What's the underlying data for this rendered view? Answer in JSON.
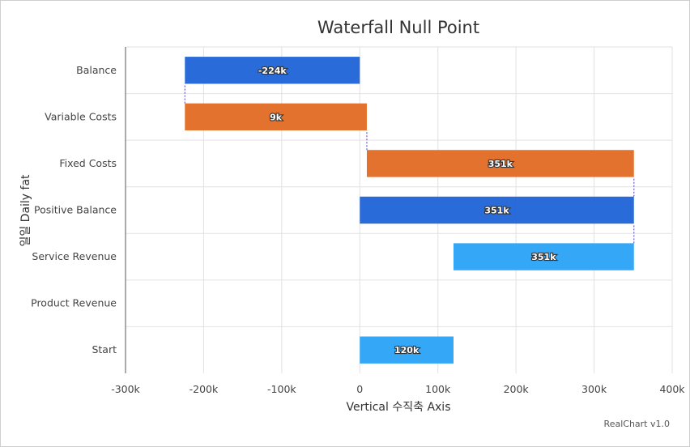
{
  "chart_data": {
    "type": "bar",
    "orientation": "horizontal",
    "subtype": "waterfall",
    "title": "Waterfall Null Point",
    "xlabel": "Vertical 수직축 Axis",
    "ylabel": "일일 Daily fat",
    "xlim": [
      -300000,
      400000
    ],
    "x_ticks": [
      -300000,
      -200000,
      -100000,
      0,
      100000,
      200000,
      300000,
      400000
    ],
    "x_tick_labels": [
      "-300k",
      "-200k",
      "-100k",
      "0",
      "100k",
      "200k",
      "300k",
      "400k"
    ],
    "grid": true,
    "categories": [
      "Start",
      "Product Revenue",
      "Service Revenue",
      "Positive Balance",
      "Fixed Costs",
      "Variable Costs",
      "Balance"
    ],
    "bars": [
      {
        "category": "Start",
        "from": 0,
        "to": 120000,
        "label": "120k",
        "color": "#29a3f7"
      },
      {
        "category": "Product Revenue",
        "from": null,
        "to": null,
        "label": "",
        "color": "#29a3f7"
      },
      {
        "category": "Service Revenue",
        "from": 120000,
        "to": 351000,
        "label": "351k",
        "color": "#29a3f7"
      },
      {
        "category": "Positive Balance",
        "from": 0,
        "to": 351000,
        "label": "351k",
        "color": "#1e63d6"
      },
      {
        "category": "Fixed Costs",
        "from": 351000,
        "to": 9000,
        "label": "351k",
        "color": "#e06a22"
      },
      {
        "category": "Variable Costs",
        "from": 9000,
        "to": -224000,
        "label": "9k",
        "color": "#e06a22"
      },
      {
        "category": "Balance",
        "from": 0,
        "to": -224000,
        "label": "-224k",
        "color": "#1e63d6"
      }
    ],
    "connector_color": "#6a5acd"
  },
  "credit": "RealChart v1.0"
}
